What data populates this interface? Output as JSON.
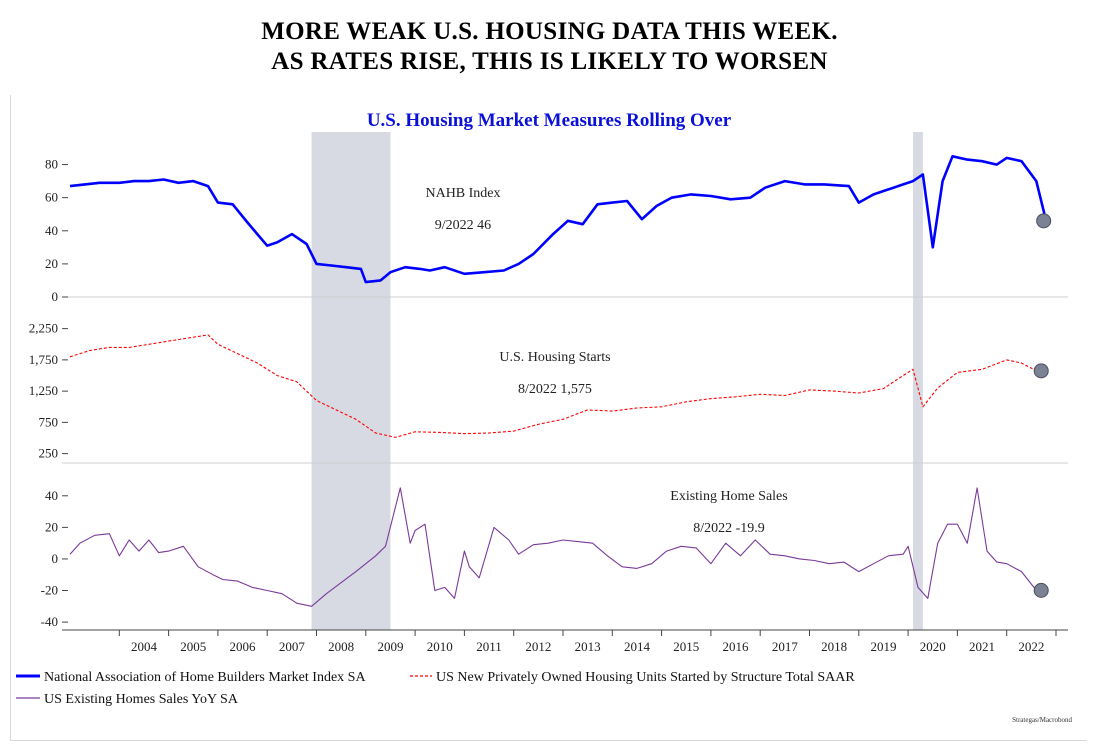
{
  "headline": {
    "line1": "MORE WEAK U.S. HOUSING DATA THIS WEEK.",
    "line2": "AS RATES RISE, THIS IS LIKELY TO WORSEN"
  },
  "chart_data": {
    "type": "line",
    "title": "U.S. Housing Market Measures Rolling Over",
    "x_labels": [
      "2004",
      "2005",
      "2006",
      "2007",
      "2008",
      "2009",
      "2010",
      "2011",
      "2012",
      "2013",
      "2014",
      "2015",
      "2016",
      "2017",
      "2018",
      "2019",
      "2020",
      "2021",
      "2022"
    ],
    "x_range": [
      2003.0,
      2023.0
    ],
    "shaded_periods": [
      [
        2007.9,
        2009.5
      ],
      [
        2020.1,
        2020.3
      ]
    ],
    "source": "Strategas/Macrobond",
    "panels": [
      {
        "annotation": [
          "NAHB Index",
          "9/2022 46"
        ],
        "ylim": [
          0,
          90
        ],
        "yticks": [
          0,
          20,
          40,
          60,
          80
        ],
        "ytick_labels": [
          "0",
          "20",
          "40",
          "60",
          "80"
        ],
        "series": [
          {
            "name": "National Association of Home Builders Market Index SA",
            "color": "#0000ff",
            "style": "solid",
            "x": [
              2003.0,
              2003.3,
              2003.6,
              2004.0,
              2004.3,
              2004.6,
              2004.9,
              2005.2,
              2005.5,
              2005.8,
              2006.0,
              2006.3,
              2006.6,
              2006.8,
              2007.0,
              2007.2,
              2007.5,
              2007.8,
              2008.0,
              2008.3,
              2008.6,
              2008.9,
              2009.0,
              2009.3,
              2009.5,
              2009.8,
              2010.1,
              2010.3,
              2010.6,
              2011.0,
              2011.4,
              2011.8,
              2012.1,
              2012.4,
              2012.8,
              2013.1,
              2013.4,
              2013.7,
              2014.0,
              2014.3,
              2014.6,
              2014.9,
              2015.2,
              2015.6,
              2016.0,
              2016.4,
              2016.8,
              2017.1,
              2017.5,
              2017.9,
              2018.3,
              2018.8,
              2019.0,
              2019.3,
              2019.6,
              2019.9,
              2020.1,
              2020.3,
              2020.5,
              2020.7,
              2020.9,
              2021.2,
              2021.5,
              2021.8,
              2022.0,
              2022.3,
              2022.6,
              2022.8
            ],
            "y": [
              67,
              68,
              69,
              69,
              70,
              70,
              71,
              69,
              70,
              67,
              57,
              56,
              45,
              38,
              31,
              33,
              38,
              32,
              20,
              19,
              18,
              17,
              9,
              10,
              15,
              18,
              17,
              16,
              18,
              14,
              15,
              16,
              20,
              26,
              38,
              46,
              44,
              56,
              57,
              58,
              47,
              55,
              60,
              62,
              61,
              59,
              60,
              66,
              70,
              68,
              68,
              67,
              57,
              62,
              65,
              68,
              70,
              74,
              30,
              70,
              85,
              83,
              82,
              80,
              84,
              82,
              70,
              46
            ]
          }
        ],
        "end_marker": {
          "x": 2022.75,
          "y": 46
        }
      },
      {
        "annotation": [
          "U.S. Housing Starts",
          "8/2022 1,575"
        ],
        "ylim": [
          100,
          2500
        ],
        "yticks": [
          250,
          750,
          1250,
          1750,
          2250
        ],
        "ytick_labels": [
          "250",
          "750",
          "1,250",
          "1,750",
          "2,250"
        ],
        "series": [
          {
            "name": "US New Privately Owned Housing Units Started by Structure Total SAAR",
            "color": "#ff0000",
            "style": "dashed",
            "x": [
              2003.0,
              2003.4,
              2003.8,
              2004.2,
              2004.6,
              2005.0,
              2005.4,
              2005.8,
              2006.0,
              2006.4,
              2006.8,
              2007.2,
              2007.6,
              2008.0,
              2008.4,
              2008.8,
              2009.2,
              2009.6,
              2010.0,
              2010.5,
              2011.0,
              2011.5,
              2012.0,
              2012.5,
              2013.0,
              2013.5,
              2014.0,
              2014.5,
              2015.0,
              2015.5,
              2016.0,
              2016.5,
              2017.0,
              2017.5,
              2018.0,
              2018.5,
              2019.0,
              2019.5,
              2019.9,
              2020.1,
              2020.3,
              2020.6,
              2021.0,
              2021.5,
              2022.0,
              2022.3,
              2022.6
            ],
            "y": [
              1800,
              1900,
              1950,
              1950,
              2000,
              2050,
              2100,
              2150,
              2000,
              1850,
              1700,
              1500,
              1400,
              1100,
              950,
              800,
              580,
              510,
              600,
              590,
              570,
              580,
              610,
              720,
              800,
              950,
              930,
              980,
              1000,
              1080,
              1130,
              1160,
              1200,
              1180,
              1270,
              1250,
              1220,
              1290,
              1500,
              1600,
              1000,
              1300,
              1550,
              1600,
              1750,
              1700,
              1575
            ]
          }
        ],
        "end_marker": {
          "x": 2022.7,
          "y": 1575
        }
      },
      {
        "annotation": [
          "Existing Home Sales",
          "8/2022 -19.9"
        ],
        "ylim": [
          -45,
          50
        ],
        "yticks": [
          -40,
          -20,
          0,
          20,
          40
        ],
        "ytick_labels": [
          "-40",
          "-20",
          "0",
          "20",
          "40"
        ],
        "series": [
          {
            "name": "US Existing Homes Sales YoY SA",
            "color": "#7a3a9a",
            "style": "solid",
            "x": [
              2003.0,
              2003.2,
              2003.5,
              2003.8,
              2004.0,
              2004.2,
              2004.4,
              2004.6,
              2004.8,
              2005.0,
              2005.3,
              2005.6,
              2005.9,
              2006.1,
              2006.4,
              2006.7,
              2007.0,
              2007.3,
              2007.6,
              2007.9,
              2008.2,
              2008.5,
              2008.8,
              2009.0,
              2009.2,
              2009.4,
              2009.7,
              2009.9,
              2010.0,
              2010.2,
              2010.4,
              2010.6,
              2010.8,
              2011.0,
              2011.1,
              2011.3,
              2011.6,
              2011.9,
              2012.1,
              2012.4,
              2012.7,
              2013.0,
              2013.3,
              2013.6,
              2013.9,
              2014.2,
              2014.5,
              2014.8,
              2015.1,
              2015.4,
              2015.7,
              2016.0,
              2016.3,
              2016.6,
              2016.9,
              2017.2,
              2017.5,
              2017.8,
              2018.1,
              2018.4,
              2018.7,
              2019.0,
              2019.3,
              2019.6,
              2019.9,
              2020.0,
              2020.2,
              2020.4,
              2020.6,
              2020.8,
              2021.0,
              2021.2,
              2021.4,
              2021.6,
              2021.8,
              2022.0,
              2022.3,
              2022.6
            ],
            "y": [
              3,
              10,
              15,
              16,
              2,
              12,
              5,
              12,
              4,
              5,
              8,
              -5,
              -10,
              -13,
              -14,
              -18,
              -20,
              -22,
              -28,
              -30,
              -22,
              -15,
              -8,
              -3,
              2,
              8,
              45,
              10,
              18,
              22,
              -20,
              -18,
              -25,
              5,
              -5,
              -12,
              20,
              12,
              3,
              9,
              10,
              12,
              11,
              10,
              2,
              -5,
              -6,
              -3,
              5,
              8,
              7,
              -3,
              10,
              2,
              12,
              3,
              2,
              0,
              -1,
              -3,
              -2,
              -8,
              -3,
              2,
              3,
              8,
              -18,
              -25,
              10,
              22,
              22,
              10,
              45,
              5,
              -2,
              -3,
              -8,
              -19.9
            ]
          }
        ],
        "end_marker": {
          "x": 2022.7,
          "y": -19.9
        }
      }
    ]
  },
  "legend": {
    "nahb": "National Association of Home Builders Market Index SA",
    "starts": "US New Privately Owned Housing Units Started by Structure Total SAAR",
    "sales": "US Existing Homes Sales YoY SA"
  }
}
